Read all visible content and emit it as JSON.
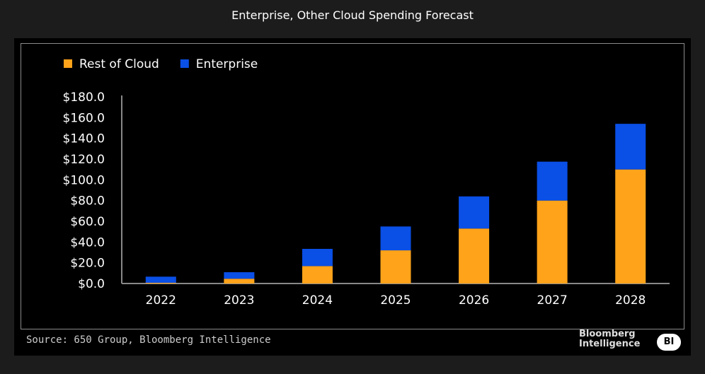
{
  "title": "Enterprise, Other Cloud Spending Forecast",
  "source": "Source: 650 Group, Bloomberg Intelligence",
  "logo": {
    "line1": "Bloomberg",
    "line2": "Intelligence",
    "badge": "BI"
  },
  "chart_data": {
    "type": "bar",
    "stacked": true,
    "categories": [
      "2022",
      "2023",
      "2024",
      "2025",
      "2026",
      "2027",
      "2028"
    ],
    "series": [
      {
        "name": "Rest of Cloud",
        "color": "#ffa31a",
        "values": [
          0.7,
          4.6,
          16.8,
          32,
          53,
          80,
          110
        ]
      },
      {
        "name": "Enterprise",
        "color": "#0a4fe6",
        "values": [
          5.9,
          6.3,
          16.6,
          23,
          31,
          37.5,
          44
        ]
      }
    ],
    "ylim": [
      0,
      180
    ],
    "yticks": [
      "$0.0",
      "$20.0",
      "$40.0",
      "$60.0",
      "$80.0",
      "$100.0",
      "$120.0",
      "$140.0",
      "$160.0",
      "$180.0"
    ],
    "legend": "top-left",
    "grid": false
  }
}
